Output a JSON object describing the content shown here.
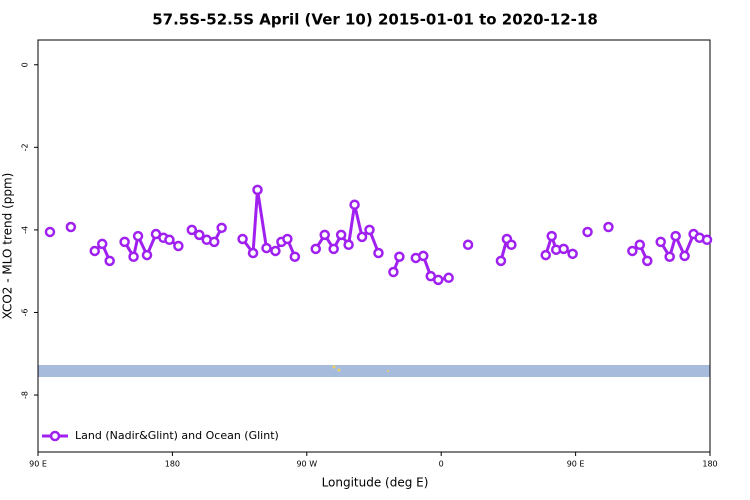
{
  "chart_data": {
    "type": "line",
    "title": "57.5S-52.5S April (Ver 10)   2015-01-01 to 2020-12-18",
    "xlabel": "Longitude (deg E)",
    "ylabel": "XCO2 - MLO trend (ppm)",
    "xlim": [
      90,
      540
    ],
    "ylim": [
      -9.38,
      0.6
    ],
    "xticks": [
      {
        "value": 90,
        "label": "90 E"
      },
      {
        "value": 180,
        "label": "180"
      },
      {
        "value": 270,
        "label": "90 W"
      },
      {
        "value": 360,
        "label": "0"
      },
      {
        "value": 450,
        "label": "90 E"
      },
      {
        "value": 540,
        "label": "180"
      }
    ],
    "yticks": [
      0,
      -2,
      -4,
      -6,
      -8
    ],
    "legend_position": "lower left",
    "x": [
      98,
      null,
      112,
      null,
      128,
      133,
      138,
      null,
      148,
      154,
      157,
      163,
      169,
      174,
      178,
      184,
      null,
      193,
      198,
      203,
      208,
      213,
      null,
      227,
      234,
      237,
      243,
      249,
      253,
      257,
      262,
      null,
      276,
      282,
      288,
      293,
      298,
      302,
      307,
      312,
      318,
      null,
      328,
      332,
      null,
      343,
      348,
      353,
      358,
      365,
      null,
      378,
      null,
      400,
      404,
      407,
      null,
      430,
      434,
      437,
      442,
      448,
      null,
      458,
      null,
      472,
      null,
      488,
      493,
      498,
      null,
      507,
      513,
      517,
      523,
      529,
      533,
      538
    ],
    "series": [
      {
        "name": "Land (Nadir&Glint) and Ocean (Glint)",
        "color": "#a020f0",
        "values": [
          -4.05,
          null,
          -3.93,
          null,
          -4.51,
          -4.34,
          -4.75,
          null,
          -4.29,
          -4.65,
          -4.15,
          -4.61,
          -4.1,
          -4.19,
          -4.24,
          -4.39,
          null,
          -4.0,
          -4.12,
          -4.24,
          -4.29,
          -3.95,
          null,
          -4.22,
          -4.56,
          -3.03,
          -4.44,
          -4.51,
          -4.29,
          -4.22,
          -4.65,
          null,
          -4.46,
          -4.12,
          -4.46,
          -4.12,
          -4.36,
          -3.39,
          -4.17,
          -4.0,
          -4.56,
          null,
          -5.02,
          -4.65,
          null,
          -4.68,
          -4.63,
          -5.12,
          -5.21,
          -5.16,
          null,
          -4.36,
          null,
          -4.75,
          -4.22,
          -4.36,
          null,
          -4.61,
          -4.15,
          -4.48,
          -4.46,
          -4.58,
          null,
          -4.05,
          null,
          -3.93,
          null,
          -4.51,
          -4.36,
          -4.75,
          null,
          -4.29,
          -4.65,
          -4.15,
          -4.63,
          -4.1,
          -4.19,
          -4.24
        ]
      }
    ]
  }
}
